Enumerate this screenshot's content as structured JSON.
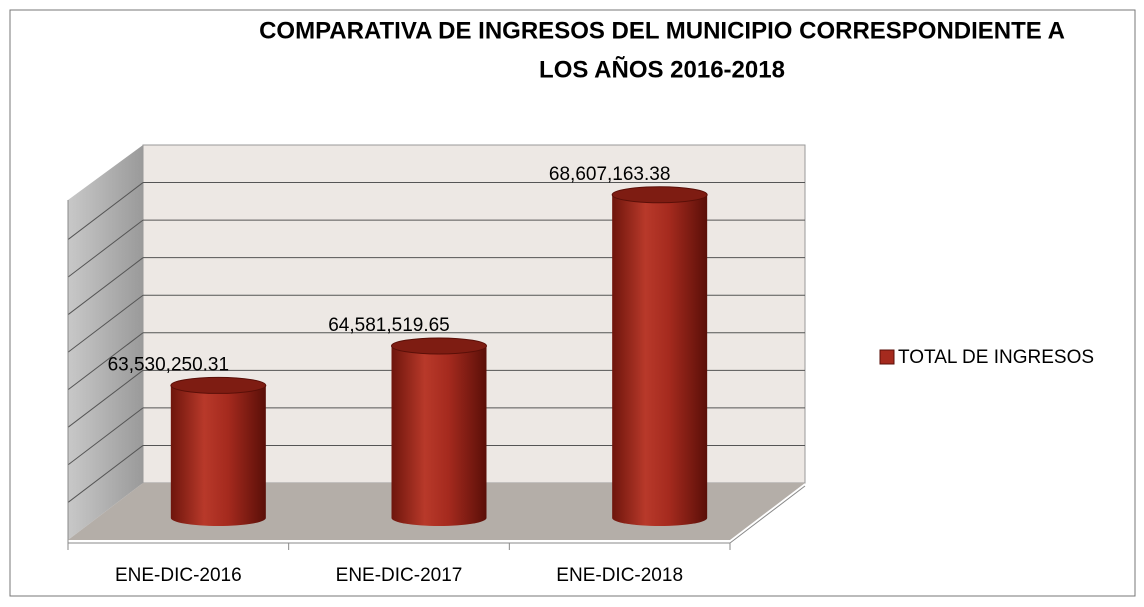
{
  "chart_data": {
    "type": "bar3d",
    "title": [
      "COMPARATIVA DE INGRESOS DEL MUNICIPIO CORRESPONDIENTE A",
      "LOS AÑOS 2016-2018"
    ],
    "categories": [
      "ENE-DIC-2016",
      "ENE-DIC-2017",
      "ENE-DIC-2018"
    ],
    "series": [
      {
        "name": "TOTAL DE INGRESOS",
        "color": "#a52a1e",
        "values": [
          63530250.31,
          64581519.65,
          68607163.38
        ],
        "value_labels": [
          "63,530,250.31",
          "64,581,519.65",
          "68,607,163.38"
        ]
      }
    ],
    "ylim": [
      60000000,
      69000000
    ],
    "yticks": [
      60000000,
      61000000,
      62000000,
      63000000,
      64000000,
      65000000,
      66000000,
      67000000,
      68000000,
      69000000
    ],
    "grid": true,
    "legend": "right"
  }
}
